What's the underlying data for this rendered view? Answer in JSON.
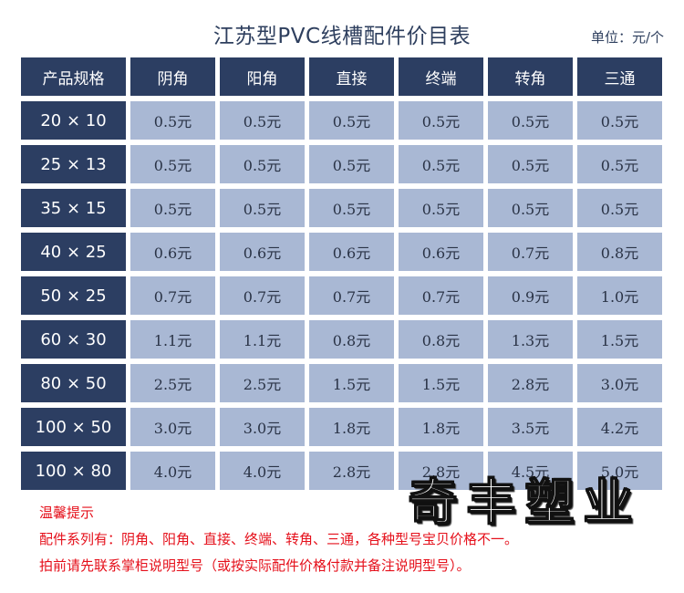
{
  "header": {
    "title": "江苏型PVC线槽配件价目表",
    "unit": "单位：元/个"
  },
  "table": {
    "columns": [
      "产品规格",
      "阴角",
      "阳角",
      "直接",
      "终端",
      "转角",
      "三通"
    ],
    "rows": [
      {
        "spec": "20 × 10",
        "values": [
          "0.5元",
          "0.5元",
          "0.5元",
          "0.5元",
          "0.5元",
          "0.5元"
        ]
      },
      {
        "spec": "25 × 13",
        "values": [
          "0.5元",
          "0.5元",
          "0.5元",
          "0.5元",
          "0.5元",
          "0.5元"
        ]
      },
      {
        "spec": "35 × 15",
        "values": [
          "0.5元",
          "0.5元",
          "0.5元",
          "0.5元",
          "0.5元",
          "0.5元"
        ]
      },
      {
        "spec": "40 × 25",
        "values": [
          "0.6元",
          "0.6元",
          "0.6元",
          "0.6元",
          "0.7元",
          "0.8元"
        ]
      },
      {
        "spec": "50 × 25",
        "values": [
          "0.7元",
          "0.7元",
          "0.7元",
          "0.7元",
          "0.9元",
          "1.0元"
        ]
      },
      {
        "spec": "60 × 30",
        "values": [
          "1.1元",
          "1.1元",
          "0.8元",
          "0.8元",
          "1.3元",
          "1.5元"
        ]
      },
      {
        "spec": "80 × 50",
        "values": [
          "2.5元",
          "2.5元",
          "1.5元",
          "1.5元",
          "2.8元",
          "3.0元"
        ]
      },
      {
        "spec": "100 × 50",
        "values": [
          "3.0元",
          "3.0元",
          "1.8元",
          "1.8元",
          "3.5元",
          "4.2元"
        ]
      },
      {
        "spec": "100 × 80",
        "values": [
          "4.0元",
          "4.0元",
          "2.8元",
          "2.8元",
          "4.5元",
          "5.0元"
        ]
      }
    ]
  },
  "tips": {
    "heading": "温馨提示",
    "line1": "配件系列有：阴角、阳角、直接、终端、转角、三通，各种型号宝贝价格不一。",
    "line2": "拍前请先联系掌柜说明型号（或按实际配件价格付款并备注说明型号）。"
  },
  "brand": {
    "text": "奇丰塑业"
  },
  "colors": {
    "header_bg": "#2c3e62",
    "cell_bg": "#a9b8d4",
    "tips_text": "#e5101b"
  }
}
